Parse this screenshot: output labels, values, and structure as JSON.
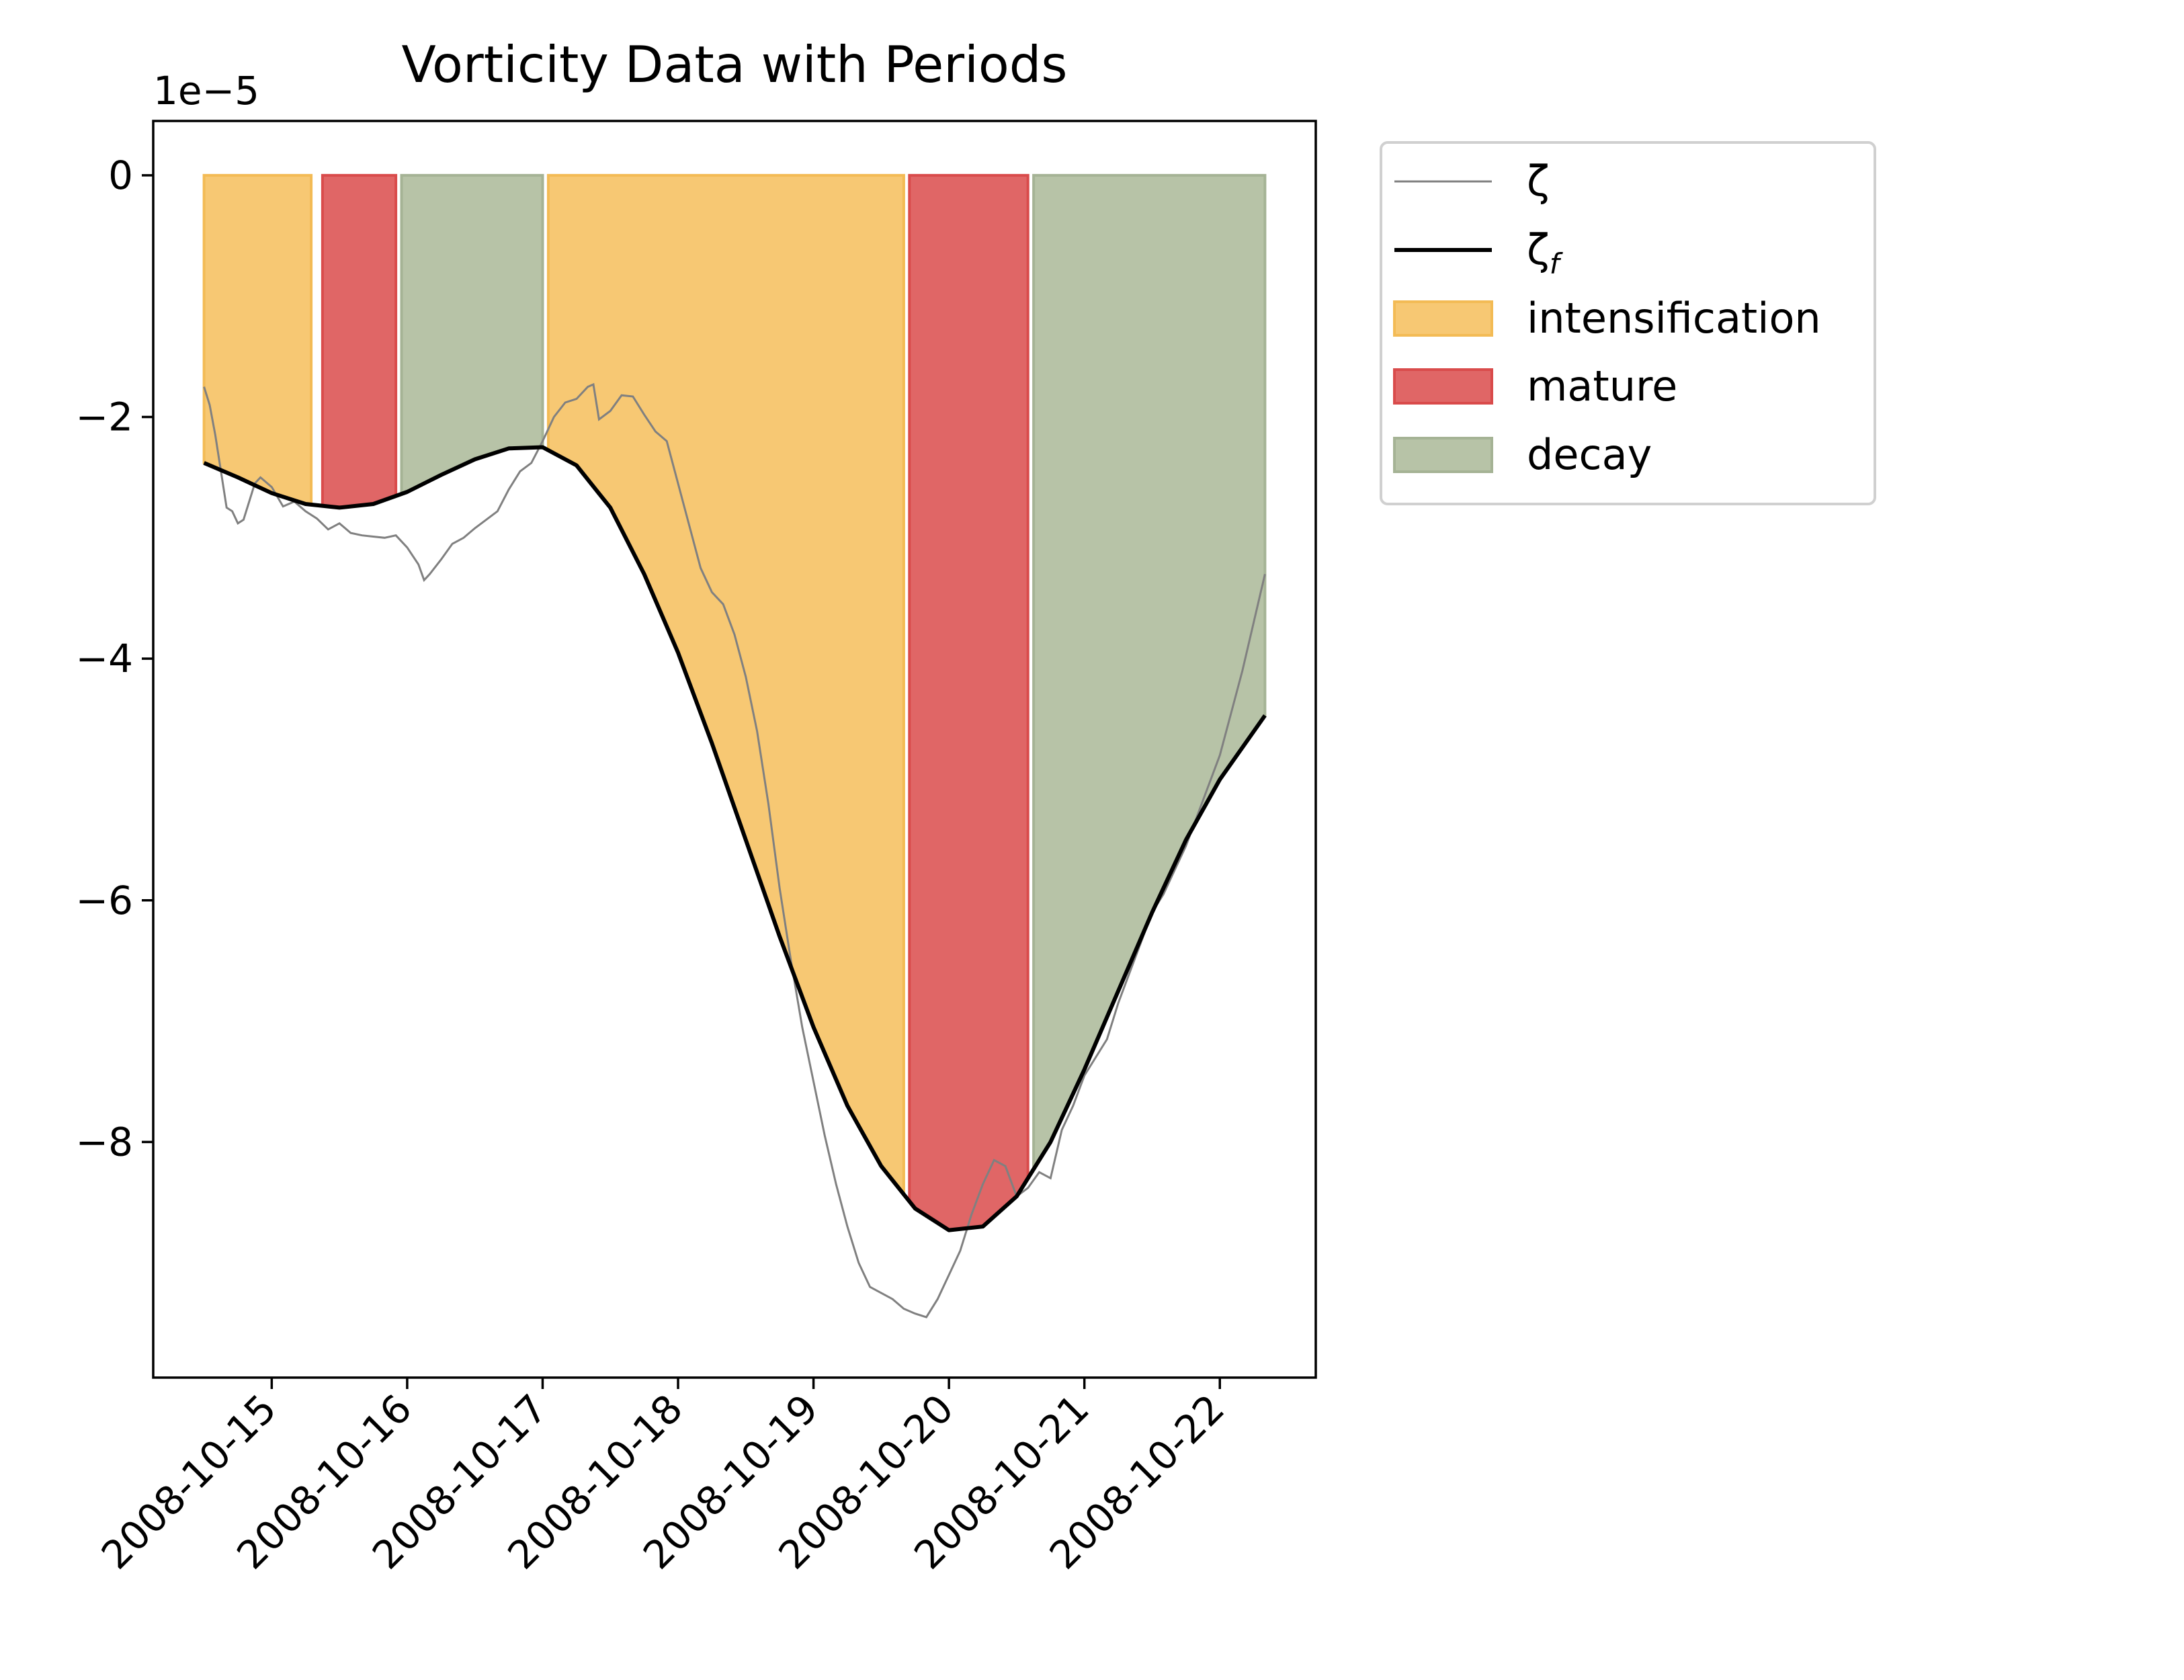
{
  "chart_data": {
    "type": "area",
    "title": "Vorticity Data with Periods",
    "xlabel": "",
    "ylabel": "",
    "y_offset_label": "1e−5",
    "y_scale_factor": 1e-05,
    "xlim": [
      "2008-10-14T03:00",
      "2008-10-22T17:00"
    ],
    "ylim": [
      -9.95,
      0.45
    ],
    "x_tick_labels": [
      "2008-10-15",
      "2008-10-16",
      "2008-10-17",
      "2008-10-18",
      "2008-10-19",
      "2008-10-20",
      "2008-10-21",
      "2008-10-22"
    ],
    "y_ticks": [
      0,
      -2,
      -4,
      -6,
      -8
    ],
    "y_tick_labels": [
      "0",
      "−2",
      "−4",
      "−6",
      "−8"
    ],
    "grid": false,
    "legend_position": "outside upper right",
    "colors": {
      "intensification": "#f7c873",
      "intensification_edge": "#f3bb55",
      "mature": "#e06666",
      "mature_edge": "#d94b4b",
      "decay": "#b7c3a7",
      "decay_edge": "#a5b395",
      "zeta": "#808080",
      "zeta_f": "#000000"
    },
    "legend": [
      {
        "label": "ζ",
        "kind": "thin-line"
      },
      {
        "label": "ζ",
        "subscript": "f",
        "kind": "thick-line"
      },
      {
        "label": "intensification",
        "kind": "patch"
      },
      {
        "label": "mature",
        "kind": "patch"
      },
      {
        "label": "decay",
        "kind": "patch"
      }
    ],
    "periods": [
      {
        "phase": "intensification",
        "start": "2008-10-14T12:00",
        "end": "2008-10-15T07:00"
      },
      {
        "phase": "mature",
        "start": "2008-10-15T09:00",
        "end": "2008-10-15T22:00"
      },
      {
        "phase": "decay",
        "start": "2008-10-15T23:00",
        "end": "2008-10-17T00:00"
      },
      {
        "phase": "intensification",
        "start": "2008-10-17T01:00",
        "end": "2008-10-19T16:00"
      },
      {
        "phase": "mature",
        "start": "2008-10-19T17:00",
        "end": "2008-10-20T14:00"
      },
      {
        "phase": "decay",
        "start": "2008-10-20T15:00",
        "end": "2008-10-22T08:00"
      }
    ],
    "series": [
      {
        "name": "ζ",
        "points": [
          [
            "2008-10-14T12:00",
            -1.75
          ],
          [
            "2008-10-14T13:00",
            -1.9
          ],
          [
            "2008-10-14T14:00",
            -2.15
          ],
          [
            "2008-10-14T15:00",
            -2.45
          ],
          [
            "2008-10-14T16:00",
            -2.75
          ],
          [
            "2008-10-14T17:00",
            -2.78
          ],
          [
            "2008-10-14T18:00",
            -2.88
          ],
          [
            "2008-10-14T19:00",
            -2.85
          ],
          [
            "2008-10-14T20:00",
            -2.7
          ],
          [
            "2008-10-14T21:00",
            -2.55
          ],
          [
            "2008-10-14T22:00",
            -2.5
          ],
          [
            "2008-10-15T00:00",
            -2.58
          ],
          [
            "2008-10-15T02:00",
            -2.74
          ],
          [
            "2008-10-15T04:00",
            -2.7
          ],
          [
            "2008-10-15T06:00",
            -2.78
          ],
          [
            "2008-10-15T08:00",
            -2.84
          ],
          [
            "2008-10-15T10:00",
            -2.93
          ],
          [
            "2008-10-15T12:00",
            -2.88
          ],
          [
            "2008-10-15T14:00",
            -2.96
          ],
          [
            "2008-10-15T16:00",
            -2.98
          ],
          [
            "2008-10-15T18:00",
            -2.99
          ],
          [
            "2008-10-15T20:00",
            -3.0
          ],
          [
            "2008-10-15T22:00",
            -2.98
          ],
          [
            "2008-10-16T00:00",
            -3.08
          ],
          [
            "2008-10-16T02:00",
            -3.22
          ],
          [
            "2008-10-16T03:00",
            -3.35
          ],
          [
            "2008-10-16T04:00",
            -3.3
          ],
          [
            "2008-10-16T06:00",
            -3.18
          ],
          [
            "2008-10-16T08:00",
            -3.05
          ],
          [
            "2008-10-16T10:00",
            -3.0
          ],
          [
            "2008-10-16T12:00",
            -2.92
          ],
          [
            "2008-10-16T14:00",
            -2.85
          ],
          [
            "2008-10-16T16:00",
            -2.78
          ],
          [
            "2008-10-16T18:00",
            -2.6
          ],
          [
            "2008-10-16T20:00",
            -2.45
          ],
          [
            "2008-10-16T22:00",
            -2.38
          ],
          [
            "2008-10-17T00:00",
            -2.2
          ],
          [
            "2008-10-17T02:00",
            -2.0
          ],
          [
            "2008-10-17T04:00",
            -1.88
          ],
          [
            "2008-10-17T06:00",
            -1.85
          ],
          [
            "2008-10-17T08:00",
            -1.75
          ],
          [
            "2008-10-17T09:00",
            -1.73
          ],
          [
            "2008-10-17T10:00",
            -2.02
          ],
          [
            "2008-10-17T12:00",
            -1.95
          ],
          [
            "2008-10-17T14:00",
            -1.82
          ],
          [
            "2008-10-17T16:00",
            -1.83
          ],
          [
            "2008-10-17T18:00",
            -1.98
          ],
          [
            "2008-10-17T20:00",
            -2.12
          ],
          [
            "2008-10-17T22:00",
            -2.2
          ],
          [
            "2008-10-18T00:00",
            -2.55
          ],
          [
            "2008-10-18T02:00",
            -2.9
          ],
          [
            "2008-10-18T04:00",
            -3.25
          ],
          [
            "2008-10-18T06:00",
            -3.45
          ],
          [
            "2008-10-18T08:00",
            -3.55
          ],
          [
            "2008-10-18T10:00",
            -3.8
          ],
          [
            "2008-10-18T12:00",
            -4.15
          ],
          [
            "2008-10-18T14:00",
            -4.6
          ],
          [
            "2008-10-18T16:00",
            -5.2
          ],
          [
            "2008-10-18T18:00",
            -5.9
          ],
          [
            "2008-10-18T20:00",
            -6.5
          ],
          [
            "2008-10-18T22:00",
            -7.05
          ],
          [
            "2008-10-19T00:00",
            -7.5
          ],
          [
            "2008-10-19T02:00",
            -7.95
          ],
          [
            "2008-10-19T04:00",
            -8.35
          ],
          [
            "2008-10-19T06:00",
            -8.7
          ],
          [
            "2008-10-19T08:00",
            -9.0
          ],
          [
            "2008-10-19T10:00",
            -9.2
          ],
          [
            "2008-10-19T12:00",
            -9.25
          ],
          [
            "2008-10-19T14:00",
            -9.3
          ],
          [
            "2008-10-19T16:00",
            -9.38
          ],
          [
            "2008-10-19T18:00",
            -9.42
          ],
          [
            "2008-10-19T20:00",
            -9.45
          ],
          [
            "2008-10-19T22:00",
            -9.3
          ],
          [
            "2008-10-20T00:00",
            -9.1
          ],
          [
            "2008-10-20T02:00",
            -8.9
          ],
          [
            "2008-10-20T04:00",
            -8.6
          ],
          [
            "2008-10-20T06:00",
            -8.35
          ],
          [
            "2008-10-20T08:00",
            -8.15
          ],
          [
            "2008-10-20T10:00",
            -8.2
          ],
          [
            "2008-10-20T12:00",
            -8.45
          ],
          [
            "2008-10-20T14:00",
            -8.38
          ],
          [
            "2008-10-20T16:00",
            -8.25
          ],
          [
            "2008-10-20T18:00",
            -8.3
          ],
          [
            "2008-10-20T20:00",
            -7.9
          ],
          [
            "2008-10-20T22:00",
            -7.7
          ],
          [
            "2008-10-21T00:00",
            -7.45
          ],
          [
            "2008-10-21T02:00",
            -7.3
          ],
          [
            "2008-10-21T04:00",
            -7.15
          ],
          [
            "2008-10-21T06:00",
            -6.85
          ],
          [
            "2008-10-21T08:00",
            -6.6
          ],
          [
            "2008-10-21T10:00",
            -6.35
          ],
          [
            "2008-10-21T12:00",
            -6.1
          ],
          [
            "2008-10-21T14:00",
            -5.95
          ],
          [
            "2008-10-21T16:00",
            -5.75
          ],
          [
            "2008-10-21T18:00",
            -5.55
          ],
          [
            "2008-10-21T20:00",
            -5.3
          ],
          [
            "2008-10-21T22:00",
            -5.05
          ],
          [
            "2008-10-22T00:00",
            -4.8
          ],
          [
            "2008-10-22T02:00",
            -4.45
          ],
          [
            "2008-10-22T04:00",
            -4.1
          ],
          [
            "2008-10-22T06:00",
            -3.7
          ],
          [
            "2008-10-22T08:00",
            -3.3
          ]
        ]
      },
      {
        "name": "ζf",
        "points": [
          [
            "2008-10-14T12:00",
            -2.38
          ],
          [
            "2008-10-14T18:00",
            -2.5
          ],
          [
            "2008-10-15T00:00",
            -2.63
          ],
          [
            "2008-10-15T06:00",
            -2.72
          ],
          [
            "2008-10-15T12:00",
            -2.75
          ],
          [
            "2008-10-15T18:00",
            -2.72
          ],
          [
            "2008-10-16T00:00",
            -2.62
          ],
          [
            "2008-10-16T06:00",
            -2.48
          ],
          [
            "2008-10-16T12:00",
            -2.35
          ],
          [
            "2008-10-16T18:00",
            -2.26
          ],
          [
            "2008-10-17T00:00",
            -2.25
          ],
          [
            "2008-10-17T06:00",
            -2.4
          ],
          [
            "2008-10-17T12:00",
            -2.75
          ],
          [
            "2008-10-17T18:00",
            -3.3
          ],
          [
            "2008-10-18T00:00",
            -3.95
          ],
          [
            "2008-10-18T06:00",
            -4.7
          ],
          [
            "2008-10-18T12:00",
            -5.5
          ],
          [
            "2008-10-18T18:00",
            -6.3
          ],
          [
            "2008-10-19T00:00",
            -7.05
          ],
          [
            "2008-10-19T06:00",
            -7.7
          ],
          [
            "2008-10-19T12:00",
            -8.2
          ],
          [
            "2008-10-19T18:00",
            -8.55
          ],
          [
            "2008-10-20T00:00",
            -8.73
          ],
          [
            "2008-10-20T06:00",
            -8.7
          ],
          [
            "2008-10-20T12:00",
            -8.45
          ],
          [
            "2008-10-20T18:00",
            -8.0
          ],
          [
            "2008-10-21T00:00",
            -7.4
          ],
          [
            "2008-10-21T06:00",
            -6.75
          ],
          [
            "2008-10-21T12:00",
            -6.1
          ],
          [
            "2008-10-21T18:00",
            -5.5
          ],
          [
            "2008-10-22T00:00",
            -5.0
          ],
          [
            "2008-10-22T08:00",
            -4.47
          ]
        ]
      }
    ]
  }
}
